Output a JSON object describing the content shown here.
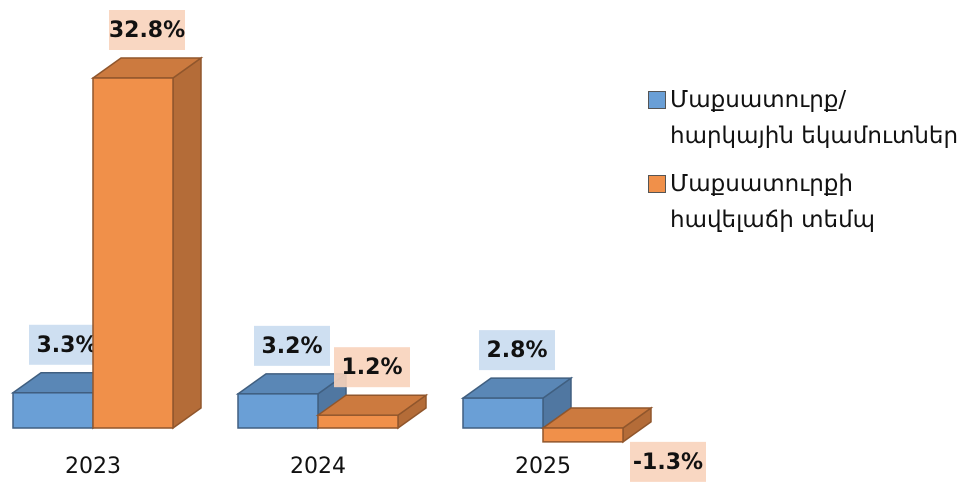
{
  "chart_data": {
    "type": "bar3d",
    "categories": [
      "2023",
      "2024",
      "2025"
    ],
    "series": [
      {
        "name": "Մաքսատուրք/ հարկային եկամուտներ",
        "color": "#6a9fd6",
        "values": [
          3.3,
          3.2,
          2.8
        ],
        "value_labels": [
          "3.3%",
          "3.2%",
          "2.8%"
        ]
      },
      {
        "name": "Մաքսատուրքի հավելաճի տեմպ",
        "color": "#f0904a",
        "values": [
          32.8,
          1.2,
          -1.3
        ],
        "value_labels": [
          "32.8%",
          "1.2%",
          "-1.3%"
        ]
      }
    ]
  }
}
